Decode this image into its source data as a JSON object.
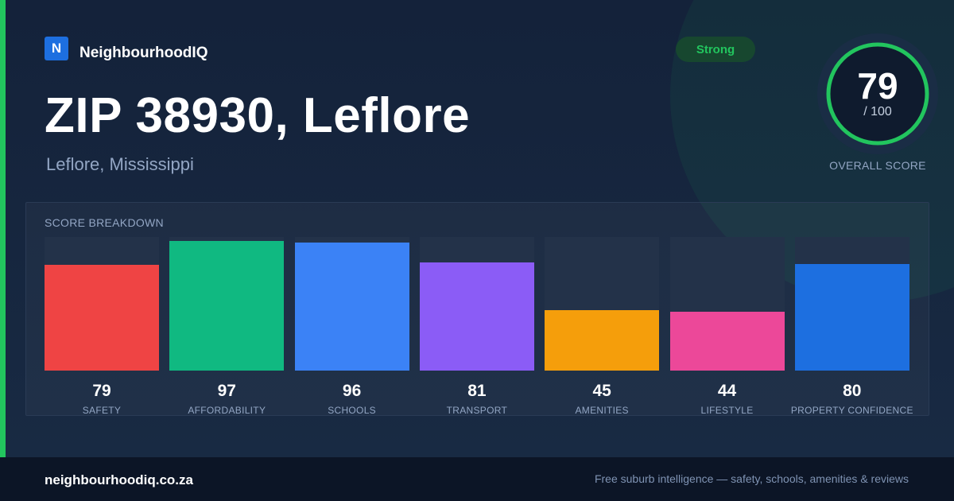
{
  "brand": {
    "logo_letter": "N",
    "name": "NeighbourhoodIQ"
  },
  "header": {
    "title": "ZIP 38930, Leflore",
    "subtitle": "Leflore, Mississippi",
    "badge": "Strong"
  },
  "overall": {
    "score": "79",
    "max": "/ 100",
    "label": "OVERALL SCORE",
    "fraction": 0.79
  },
  "colors": {
    "accent": "#22c55e",
    "track": "#233249"
  },
  "chart_data": {
    "type": "bar",
    "title": "SCORE BREAKDOWN",
    "ylim": [
      0,
      100
    ],
    "categories": [
      "SAFETY",
      "AFFORDABILITY",
      "SCHOOLS",
      "TRANSPORT",
      "AMENITIES",
      "LIFESTYLE",
      "PROPERTY CONFIDENCE"
    ],
    "values": [
      79,
      97,
      96,
      81,
      45,
      44,
      80
    ],
    "colors": [
      "#ef4444",
      "#10b981",
      "#3b82f6",
      "#8b5cf6",
      "#f59e0b",
      "#ec4899",
      "#1d6fe0"
    ]
  },
  "footer": {
    "url": "neighbourhoodiq.co.za",
    "tagline": "Free suburb intelligence — safety, schools, amenities & reviews"
  }
}
